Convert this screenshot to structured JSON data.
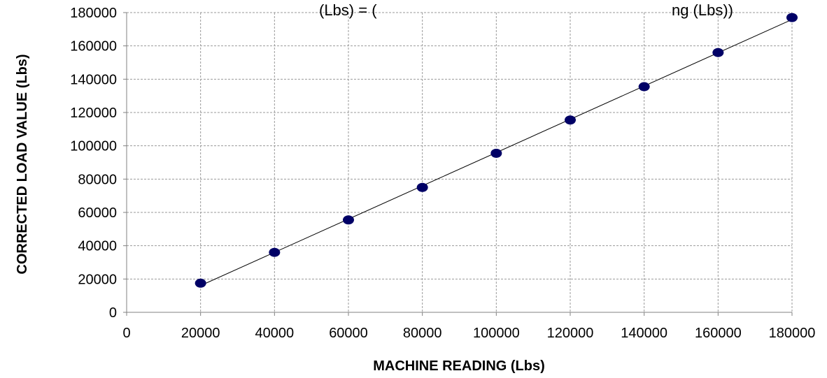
{
  "chart_data": {
    "type": "scatter",
    "title": "(Lbs) = (",
    "title_right": "ng (Lbs))",
    "xlabel": "MACHINE READING (Lbs)",
    "ylabel": "CORRECTED LOAD VALUE  (Lbs)",
    "xlim": [
      0,
      180000
    ],
    "ylim": [
      0,
      180000
    ],
    "x_ticks": [
      0,
      20000,
      40000,
      60000,
      80000,
      100000,
      120000,
      140000,
      160000,
      180000
    ],
    "y_ticks": [
      0,
      20000,
      40000,
      60000,
      80000,
      100000,
      120000,
      140000,
      160000,
      180000
    ],
    "grid": true,
    "legend": "none",
    "series": [
      {
        "x": [
          20000,
          40000,
          60000,
          80000,
          100000,
          120000,
          140000,
          160000,
          180000
        ],
        "y": [
          17500,
          36000,
          55500,
          75000,
          95500,
          115500,
          135500,
          156000,
          177000
        ],
        "marker_color": "#000066",
        "trendline": true,
        "trendline_color": "#000000"
      }
    ]
  }
}
